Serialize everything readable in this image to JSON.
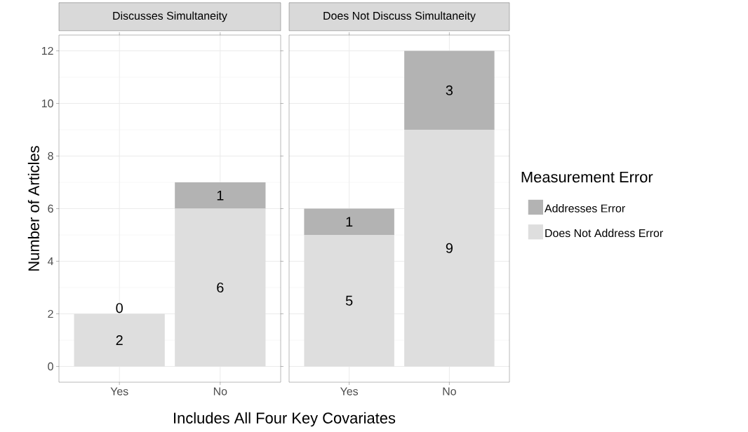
{
  "chart_data": [
    {
      "type": "bar",
      "title": "Discusses Simultaneity",
      "xlabel": "Includes All Four Key Covariates",
      "ylabel": "Number of Articles",
      "categories": [
        "Yes",
        "No"
      ],
      "stacked": true,
      "data_labels": true,
      "grid": true,
      "ylim": [
        -0.6,
        12.6
      ],
      "yticks": [
        0,
        2,
        4,
        6,
        8,
        10,
        12
      ],
      "series": [
        {
          "color": "#dedede",
          "values": [
            2,
            6
          ]
        },
        {
          "color": "#b3b3b3",
          "values": [
            0,
            1
          ]
        }
      ]
    },
    {
      "type": "bar",
      "title": "Does Not Discuss Simultaneity",
      "legend_title": "Measurement Error",
      "legend": "right",
      "categories": [
        "Yes",
        "No"
      ],
      "stacked": true,
      "data_labels": true,
      "grid": true,
      "ylim": [
        -0.6,
        12.6
      ],
      "yticks": [
        0,
        2,
        4,
        6,
        8,
        10,
        12
      ],
      "tick_labels": "x",
      "series": [
        {
          "name": "Does Not Address Error",
          "color": "#dedede",
          "values": [
            5,
            9
          ]
        },
        {
          "name": "Addresses Error",
          "color": "#b3b3b3",
          "values": [
            1,
            3
          ]
        }
      ]
    }
  ]
}
